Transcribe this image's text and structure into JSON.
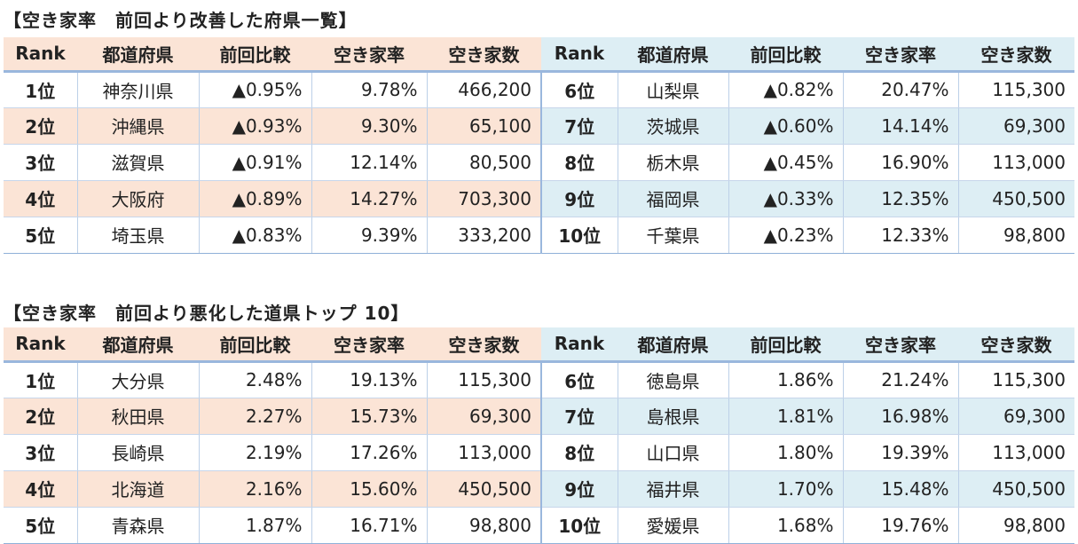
{
  "sections": [
    {
      "title": "【空き家率　前回より改善した府県一覧】",
      "headers": [
        "Rank",
        "都道府県",
        "前回比較",
        "空き家率",
        "空き家数",
        "Rank",
        "都道府県",
        "前回比較",
        "空き家率",
        "空き家数"
      ],
      "rows": [
        {
          "left": [
            "1位",
            "神奈川県",
            "▲0.95%",
            "9.78%",
            "466,200"
          ],
          "right": [
            "6位",
            "山梨県",
            "▲0.82%",
            "20.47%",
            "115,300"
          ]
        },
        {
          "left": [
            "2位",
            "沖縄県",
            "▲0.93%",
            "9.30%",
            "65,100"
          ],
          "right": [
            "7位",
            "茨城県",
            "▲0.60%",
            "14.14%",
            "69,300"
          ]
        },
        {
          "left": [
            "3位",
            "滋賀県",
            "▲0.91%",
            "12.14%",
            "80,500"
          ],
          "right": [
            "8位",
            "栃木県",
            "▲0.45%",
            "16.90%",
            "113,000"
          ]
        },
        {
          "left": [
            "4位",
            "大阪府",
            "▲0.89%",
            "14.27%",
            "703,300"
          ],
          "right": [
            "9位",
            "福岡県",
            "▲0.33%",
            "12.35%",
            "450,500"
          ]
        },
        {
          "left": [
            "5位",
            "埼玉県",
            "▲0.83%",
            "9.39%",
            "333,200"
          ],
          "right": [
            "10位",
            "千葉県",
            "▲0.23%",
            "12.33%",
            "98,800"
          ]
        }
      ]
    },
    {
      "title": "【空き家率　前回より悪化した道県トップ 10】",
      "headers": [
        "Rank",
        "都道府県",
        "前回比較",
        "空き家率",
        "空き家数",
        "Rank",
        "都道府県",
        "前回比較",
        "空き家率",
        "空き家数"
      ],
      "rows": [
        {
          "left": [
            "1位",
            "大分県",
            "2.48%",
            "19.13%",
            "115,300"
          ],
          "right": [
            "6位",
            "徳島県",
            "1.86%",
            "21.24%",
            "115,300"
          ]
        },
        {
          "left": [
            "2位",
            "秋田県",
            "2.27%",
            "15.73%",
            "69,300"
          ],
          "right": [
            "7位",
            "島根県",
            "1.81%",
            "16.98%",
            "69,300"
          ]
        },
        {
          "left": [
            "3位",
            "長崎県",
            "2.19%",
            "17.26%",
            "113,000"
          ],
          "right": [
            "8位",
            "山口県",
            "1.80%",
            "19.39%",
            "113,000"
          ]
        },
        {
          "left": [
            "4位",
            "北海道",
            "2.16%",
            "15.60%",
            "450,500"
          ],
          "right": [
            "9位",
            "福井県",
            "1.70%",
            "15.48%",
            "450,500"
          ]
        },
        {
          "left": [
            "5位",
            "青森県",
            "1.87%",
            "16.71%",
            "98,800"
          ],
          "right": [
            "10位",
            "愛媛県",
            "1.68%",
            "19.76%",
            "98,800"
          ]
        }
      ]
    }
  ],
  "colors": {
    "left_band": "#fbe4d6",
    "right_band": "#ddeef4",
    "rule": "#9ab7dd"
  }
}
